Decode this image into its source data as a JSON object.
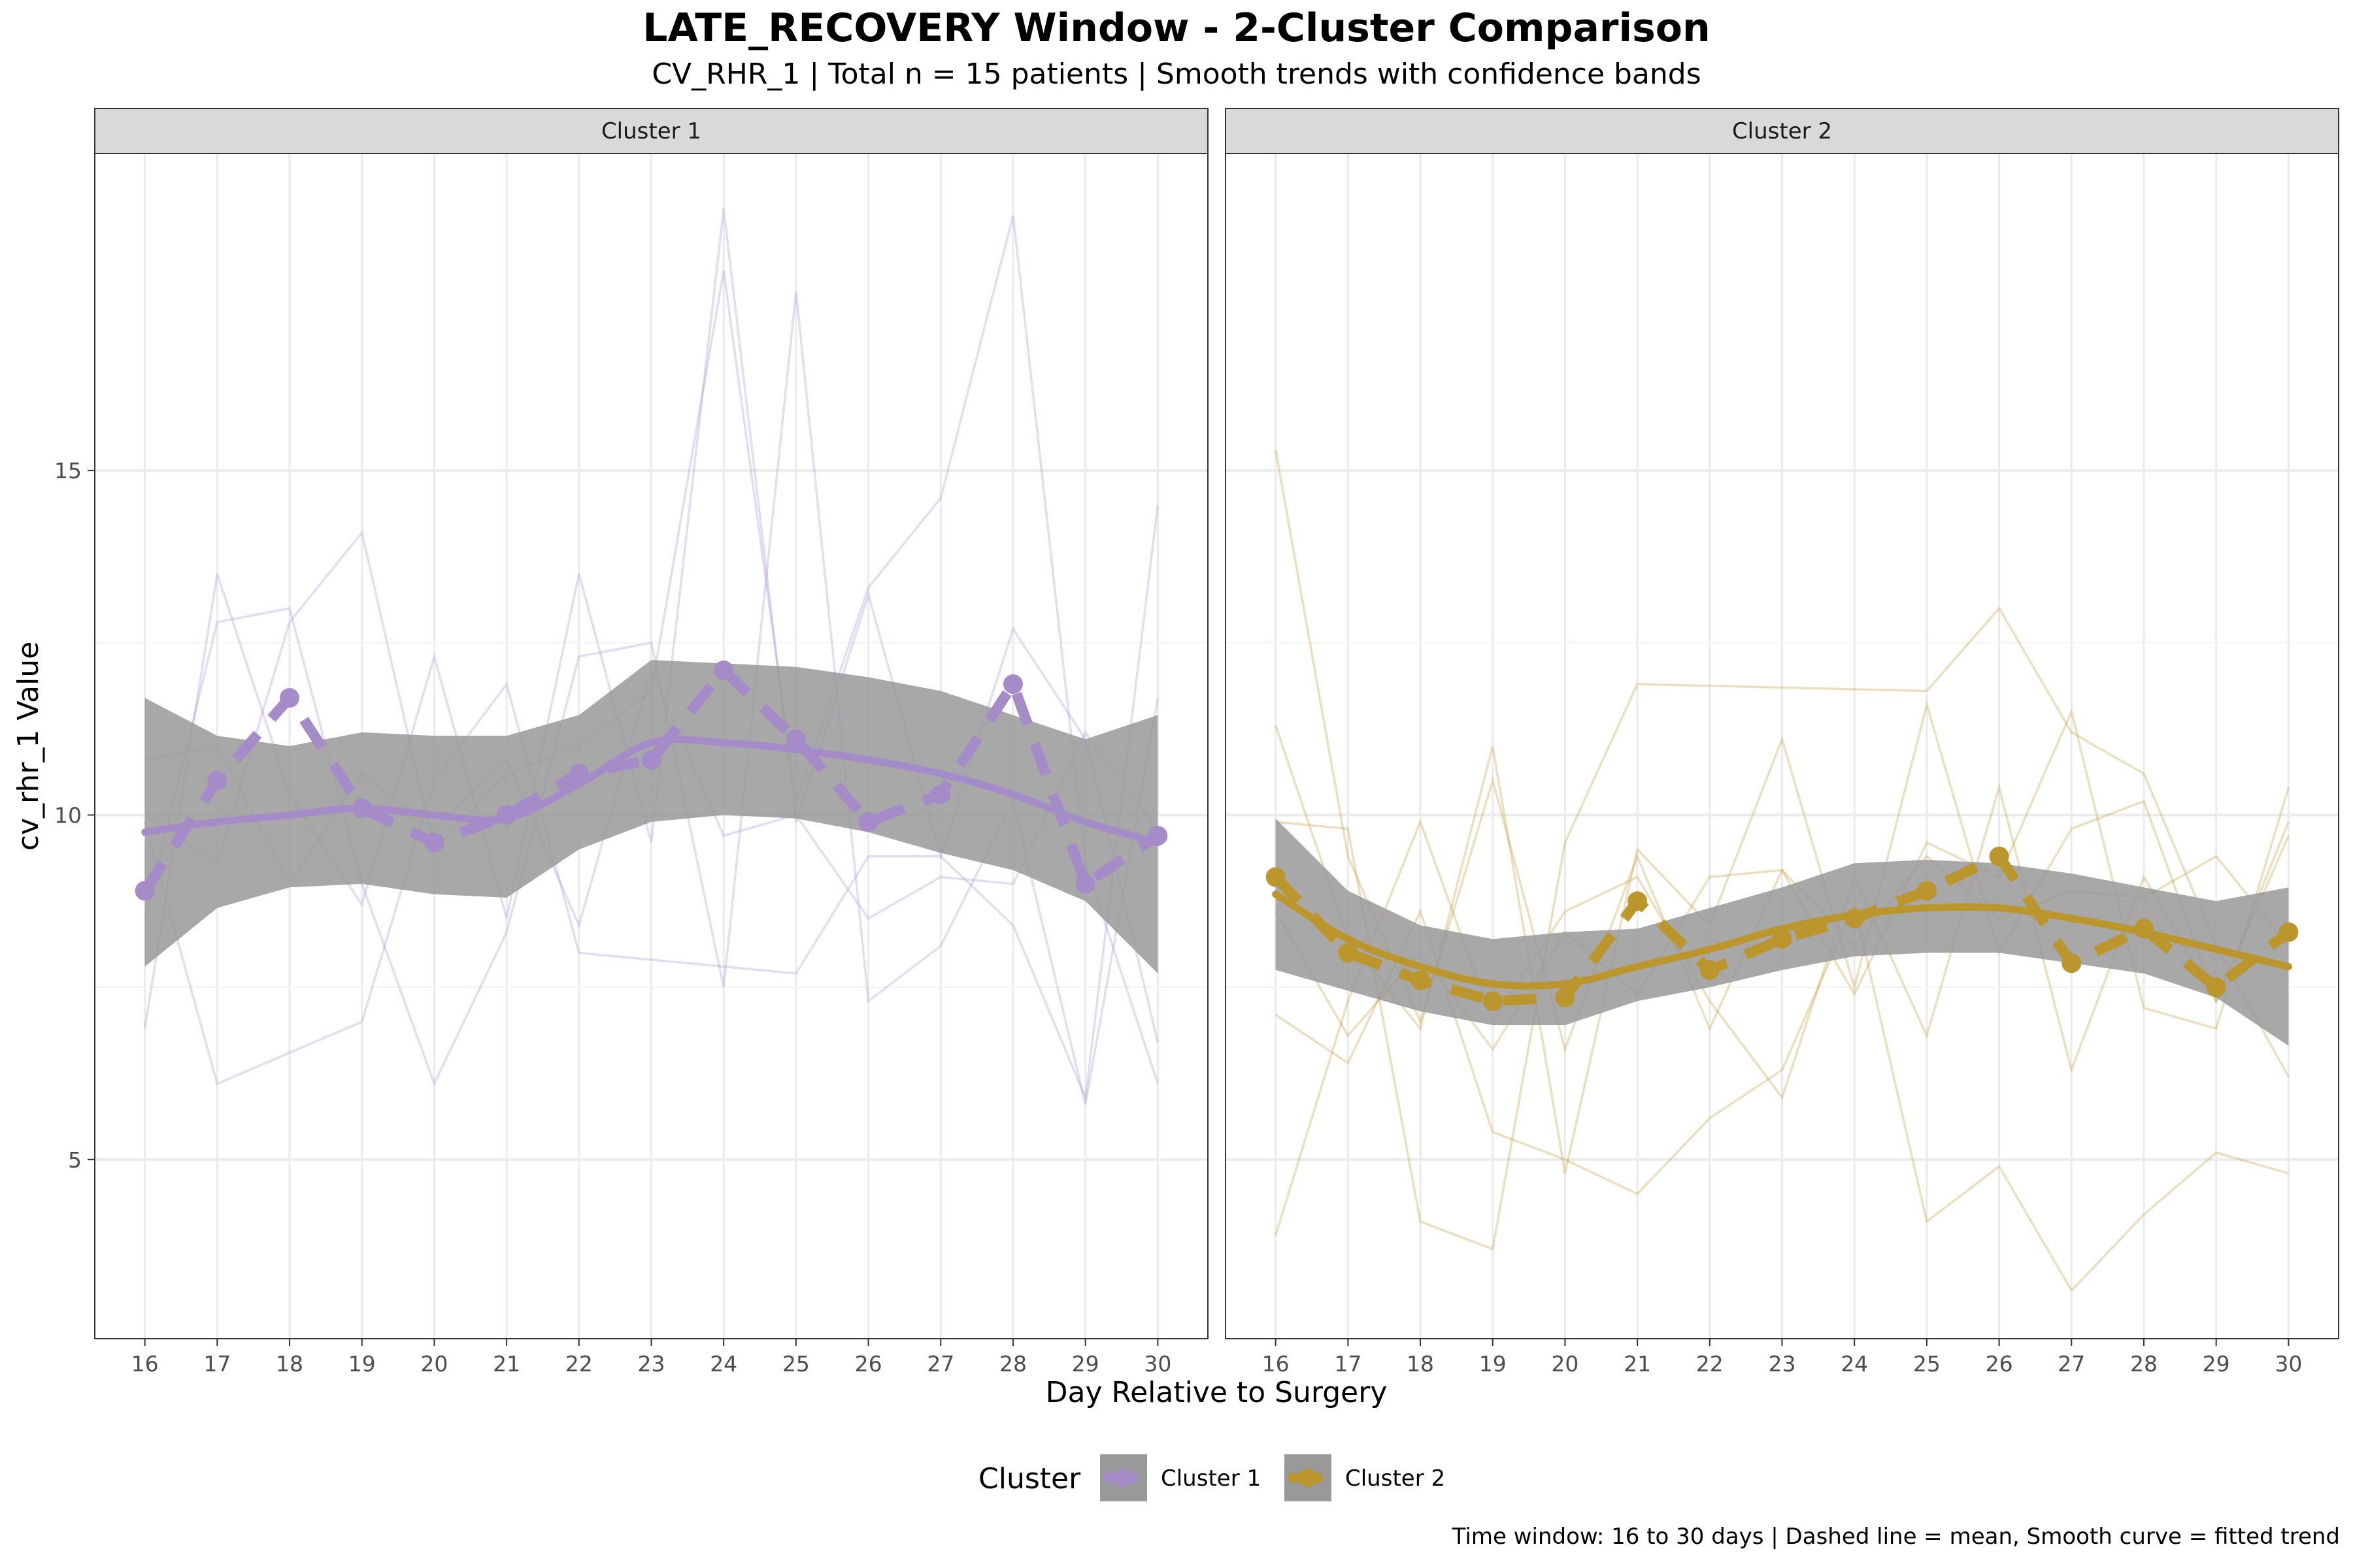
{
  "header": {
    "title": "LATE_RECOVERY Window - 2-Cluster Comparison",
    "subtitle": "CV_RHR_1 | Total n = 15 patients | Smooth trends with confidence bands"
  },
  "caption": "Time window: 16 to 30 days | Dashed line = mean, Smooth curve = fitted trend",
  "chart_data": {
    "type": "line",
    "xlabel": "Day Relative to Surgery",
    "ylabel": "cv_rhr_1 Value",
    "x_ticks": [
      16,
      17,
      18,
      19,
      20,
      21,
      22,
      23,
      24,
      25,
      26,
      27,
      28,
      29,
      30
    ],
    "y_ticks": [
      5,
      10,
      15
    ],
    "ylim": [
      2.4,
      19.6
    ],
    "grid": true,
    "legend": {
      "title": "Cluster",
      "position": "bottom",
      "entries": [
        "Cluster 1",
        "Cluster 2"
      ]
    },
    "colors": {
      "cluster1": "#A68BC9",
      "cluster2": "#BA962D",
      "band": "#999999"
    },
    "panels": [
      {
        "name": "Cluster 1",
        "color": "#A68BC9",
        "mean": {
          "x": [
            16,
            17,
            18,
            19,
            20,
            21,
            22,
            23,
            24,
            25,
            26,
            27,
            28,
            29,
            30
          ],
          "y": [
            8.9,
            10.5,
            11.7,
            10.1,
            9.6,
            10.0,
            10.6,
            10.8,
            12.1,
            11.1,
            9.9,
            10.3,
            11.9,
            9.0,
            9.7
          ]
        },
        "trend": {
          "x": [
            16,
            17,
            18,
            19,
            20,
            21,
            22,
            23,
            24,
            25,
            26,
            27,
            28,
            29,
            30
          ],
          "y": [
            9.75,
            9.9,
            10.0,
            10.1,
            10.0,
            9.95,
            10.45,
            11.05,
            11.05,
            10.95,
            10.8,
            10.6,
            10.3,
            9.9,
            9.6
          ],
          "lower": [
            7.8,
            8.65,
            8.95,
            9.0,
            8.85,
            8.8,
            9.5,
            9.9,
            10.0,
            9.95,
            9.75,
            9.45,
            9.2,
            8.75,
            7.7
          ],
          "upper": [
            11.7,
            11.15,
            11.0,
            11.2,
            11.15,
            11.15,
            11.45,
            12.25,
            12.2,
            12.15,
            12.0,
            11.8,
            11.45,
            11.1,
            11.45
          ]
        },
        "patients": [
          {
            "x": [
              16,
              17,
              18,
              19,
              20,
              21,
              22,
              23,
              24,
              25,
              26,
              27,
              28,
              29,
              30
            ],
            "y": [
              6.9,
              13.5,
              10.3,
              8.7,
              12.3,
              8.5,
              13.5,
              9.6,
              18.8,
              9.9,
              13.2,
              9.4,
              12.7,
              11.1,
              6.7
            ]
          },
          {
            "x": [
              16,
              17,
              18,
              19,
              20,
              21,
              22,
              23,
              24,
              25,
              26,
              27,
              28,
              29,
              30
            ],
            "y": [
              8.5,
              12.8,
              13.0,
              9.0,
              6.1,
              8.3,
              12.3,
              12.5,
              7.5,
              17.6,
              7.3,
              8.1,
              10.2,
              5.8,
              11.7
            ]
          },
          {
            "x": [
              16,
              17,
              19,
              20,
              21,
              22,
              23,
              24,
              25,
              26,
              27,
              28,
              29,
              30
            ],
            "y": [
              9.9,
              6.1,
              7.0,
              10.5,
              11.9,
              8.0,
              7.9,
              7.8,
              7.7,
              9.4,
              9.4,
              8.4,
              5.9,
              14.5
            ]
          },
          {
            "x": [
              16,
              17,
              18,
              19,
              20,
              21,
              22,
              23,
              24,
              25,
              26,
              27,
              28,
              29,
              30
            ],
            "y": [
              10.0,
              9.3,
              12.8,
              14.1,
              9.5,
              10.6,
              11.0,
              11.8,
              17.9,
              10.2,
              13.3,
              14.6,
              18.7,
              9.3,
              6.1
            ]
          },
          {
            "x": [
              16,
              17,
              18,
              19,
              20,
              21,
              22,
              23,
              24,
              25,
              26,
              27,
              28,
              29,
              30
            ],
            "y": [
              10.8,
              11.0,
              9.0,
              10.6,
              9.8,
              10.8,
              8.4,
              12.1,
              9.7,
              10.0,
              8.5,
              9.1,
              9.0,
              11.2,
              9.8
            ]
          }
        ]
      },
      {
        "name": "Cluster 2",
        "color": "#BA962D",
        "mean": {
          "x": [
            16,
            17,
            18,
            19,
            20,
            21,
            22,
            23,
            24,
            25,
            26,
            27,
            28,
            29,
            30
          ],
          "y": [
            9.1,
            8.0,
            7.6,
            7.3,
            7.35,
            8.75,
            7.75,
            8.2,
            8.5,
            8.9,
            9.4,
            7.85,
            8.35,
            7.5,
            8.3
          ]
        },
        "trend": {
          "x": [
            16,
            17,
            18,
            19,
            20,
            21,
            22,
            23,
            24,
            25,
            26,
            27,
            28,
            29,
            30
          ],
          "y": [
            8.85,
            8.2,
            7.8,
            7.55,
            7.55,
            7.8,
            8.05,
            8.35,
            8.55,
            8.65,
            8.65,
            8.5,
            8.3,
            8.05,
            7.8
          ],
          "lower": [
            7.75,
            7.45,
            7.15,
            6.95,
            6.95,
            7.3,
            7.5,
            7.75,
            7.95,
            8.0,
            8.0,
            7.85,
            7.7,
            7.35,
            6.65
          ],
          "upper": [
            9.95,
            8.9,
            8.4,
            8.2,
            8.3,
            8.35,
            8.65,
            8.95,
            9.3,
            9.35,
            9.3,
            9.15,
            8.95,
            8.75,
            8.95
          ]
        },
        "patients": [
          {
            "x": [
              16,
              17,
              18,
              19,
              20,
              21,
              22,
              23,
              24,
              25,
              26,
              27,
              28,
              29,
              30
            ],
            "y": [
              15.3,
              9.4,
              7.0,
              10.5,
              6.6,
              9.4,
              6.9,
              9.2,
              7.4,
              9.6,
              9.1,
              11.5,
              7.2,
              6.9,
              10.4
            ]
          },
          {
            "x": [
              16,
              17,
              18,
              19,
              20,
              21,
              22,
              23,
              24,
              25,
              26,
              27,
              28,
              29,
              30
            ],
            "y": [
              11.3,
              8.2,
              6.9,
              11.0,
              4.8,
              9.5,
              8.4,
              11.1,
              7.5,
              11.6,
              8.0,
              9.8,
              10.2,
              7.3,
              9.7
            ]
          },
          {
            "x": [
              16,
              17,
              18,
              19,
              20,
              21,
              25,
              26,
              27,
              28,
              29,
              30
            ],
            "y": [
              9.9,
              9.8,
              4.1,
              3.7,
              9.6,
              11.9,
              11.8,
              13.0,
              11.2,
              10.6,
              8.1,
              6.2
            ]
          },
          {
            "x": [
              16,
              17,
              18,
              19,
              20,
              21,
              22,
              23,
              24,
              25,
              26,
              27,
              28,
              29,
              30
            ],
            "y": [
              7.1,
              6.4,
              8.6,
              5.4,
              5.0,
              4.5,
              5.6,
              6.3,
              8.7,
              4.1,
              4.9,
              3.1,
              4.2,
              5.1,
              4.8
            ]
          },
          {
            "x": [
              16,
              17,
              18,
              19,
              20,
              21,
              22,
              23,
              24,
              25,
              26,
              27,
              28,
              29,
              30
            ],
            "y": [
              3.9,
              7.3,
              9.9,
              7.0,
              8.6,
              9.1,
              7.3,
              5.9,
              9.1,
              6.8,
              10.4,
              6.3,
              9.1,
              7.3,
              9.9
            ]
          },
          {
            "x": [
              16,
              17,
              18,
              19,
              20,
              21,
              22,
              23,
              24,
              25,
              26,
              27,
              28,
              29,
              30
            ],
            "y": [
              8.6,
              6.8,
              8.0,
              6.6,
              8.3,
              7.4,
              9.1,
              9.2,
              8.1,
              9.4,
              8.5,
              8.9,
              8.8,
              9.4,
              8.1
            ]
          }
        ]
      }
    ]
  }
}
